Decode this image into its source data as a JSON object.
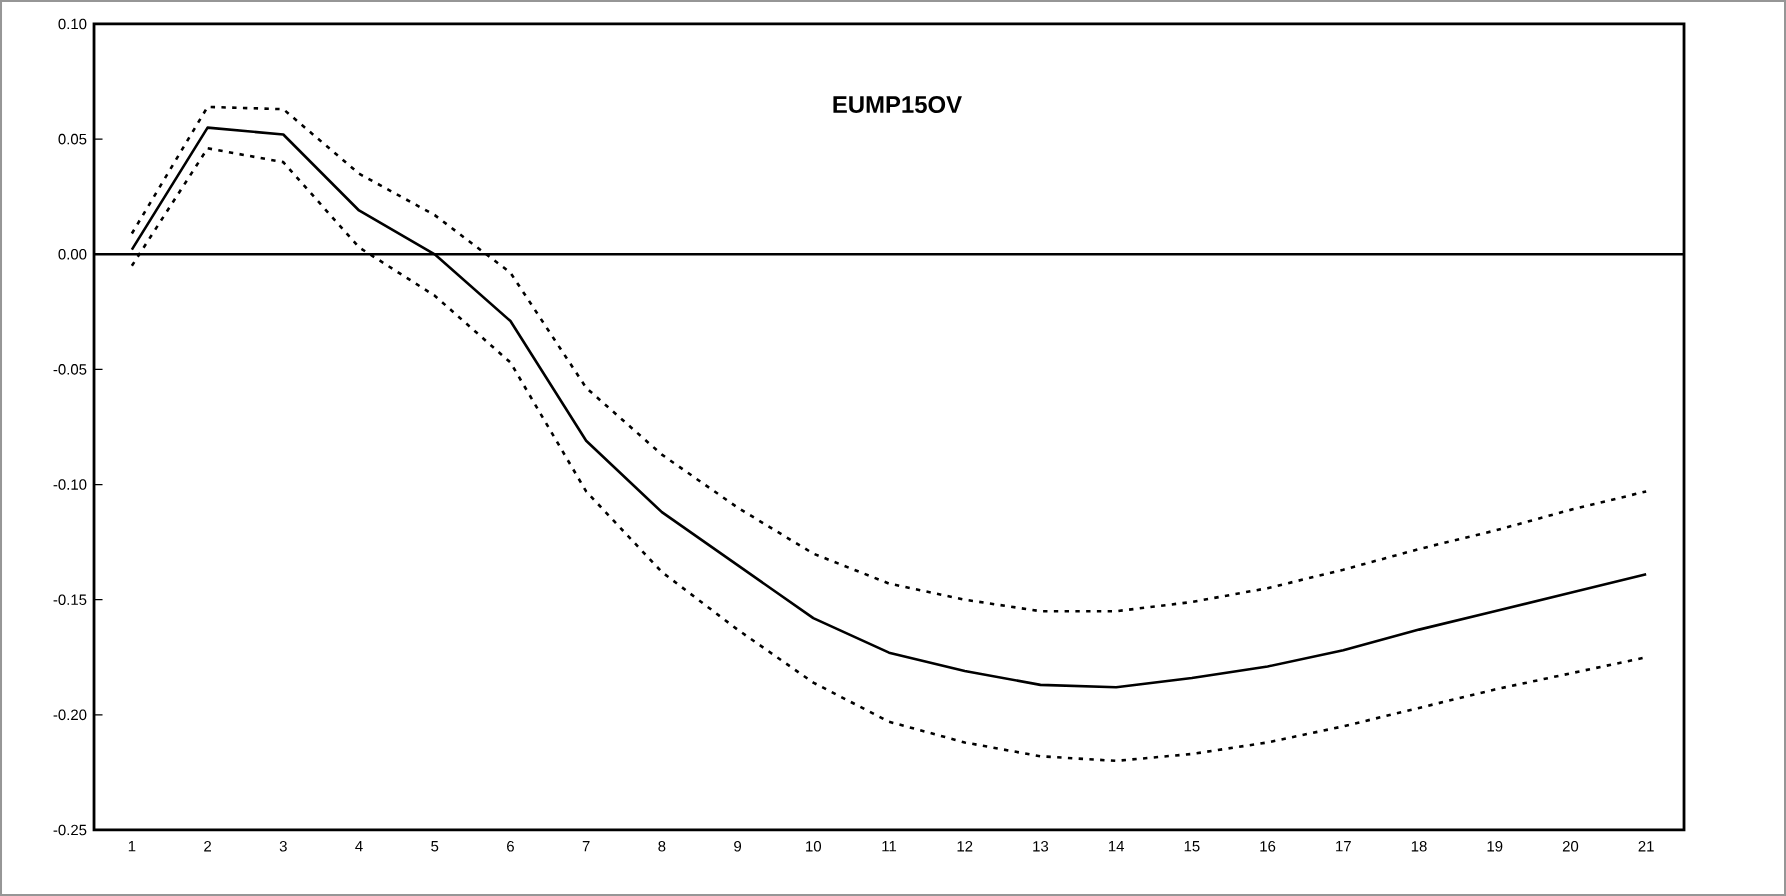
{
  "chart_data": {
    "type": "line",
    "title": "EUMP15OV",
    "categories": [
      "1",
      "2",
      "3",
      "4",
      "5",
      "6",
      "7",
      "8",
      "9",
      "10",
      "11",
      "12",
      "13",
      "14",
      "15",
      "16",
      "17",
      "18",
      "19",
      "20",
      "21"
    ],
    "series": [
      {
        "color": "#000000",
        "line_style": "solid",
        "values": [
          0.002,
          0.055,
          0.052,
          0.019,
          0.0,
          -0.029,
          -0.081,
          -0.112,
          -0.135,
          -0.158,
          -0.173,
          -0.181,
          -0.187,
          -0.188,
          -0.184,
          -0.179,
          -0.172,
          -0.163,
          -0.155,
          -0.147,
          -0.139
        ]
      },
      {
        "color": "#000000",
        "line_style": "dashed",
        "values": [
          0.009,
          0.064,
          0.063,
          0.035,
          0.017,
          -0.008,
          -0.058,
          -0.087,
          -0.11,
          -0.13,
          -0.143,
          -0.15,
          -0.155,
          -0.155,
          -0.151,
          -0.145,
          -0.137,
          -0.128,
          -0.12,
          -0.111,
          -0.103
        ]
      },
      {
        "color": "#000000",
        "line_style": "dashed",
        "values": [
          -0.005,
          0.046,
          0.04,
          0.003,
          -0.018,
          -0.047,
          -0.103,
          -0.138,
          -0.163,
          -0.186,
          -0.203,
          -0.212,
          -0.218,
          -0.22,
          -0.217,
          -0.212,
          -0.205,
          -0.197,
          -0.189,
          -0.182,
          -0.175
        ]
      }
    ],
    "ylim": [
      -0.25,
      0.1
    ],
    "yticks": [
      {
        "value": -0.25,
        "label": "-0.25"
      },
      {
        "value": -0.2,
        "label": "-0.20"
      },
      {
        "value": -0.15,
        "label": "-0.15"
      },
      {
        "value": -0.1,
        "label": "-0.10"
      },
      {
        "value": -0.05,
        "label": "-0.05"
      },
      {
        "value": 0,
        "label": "0.00"
      },
      {
        "value": 0.05,
        "label": "0.05"
      },
      {
        "value": 0.1,
        "label": "0.10"
      }
    ],
    "ref_lines": [
      {
        "axis": "y",
        "value": 0,
        "color": "#000000"
      }
    ],
    "marker": "none"
  }
}
